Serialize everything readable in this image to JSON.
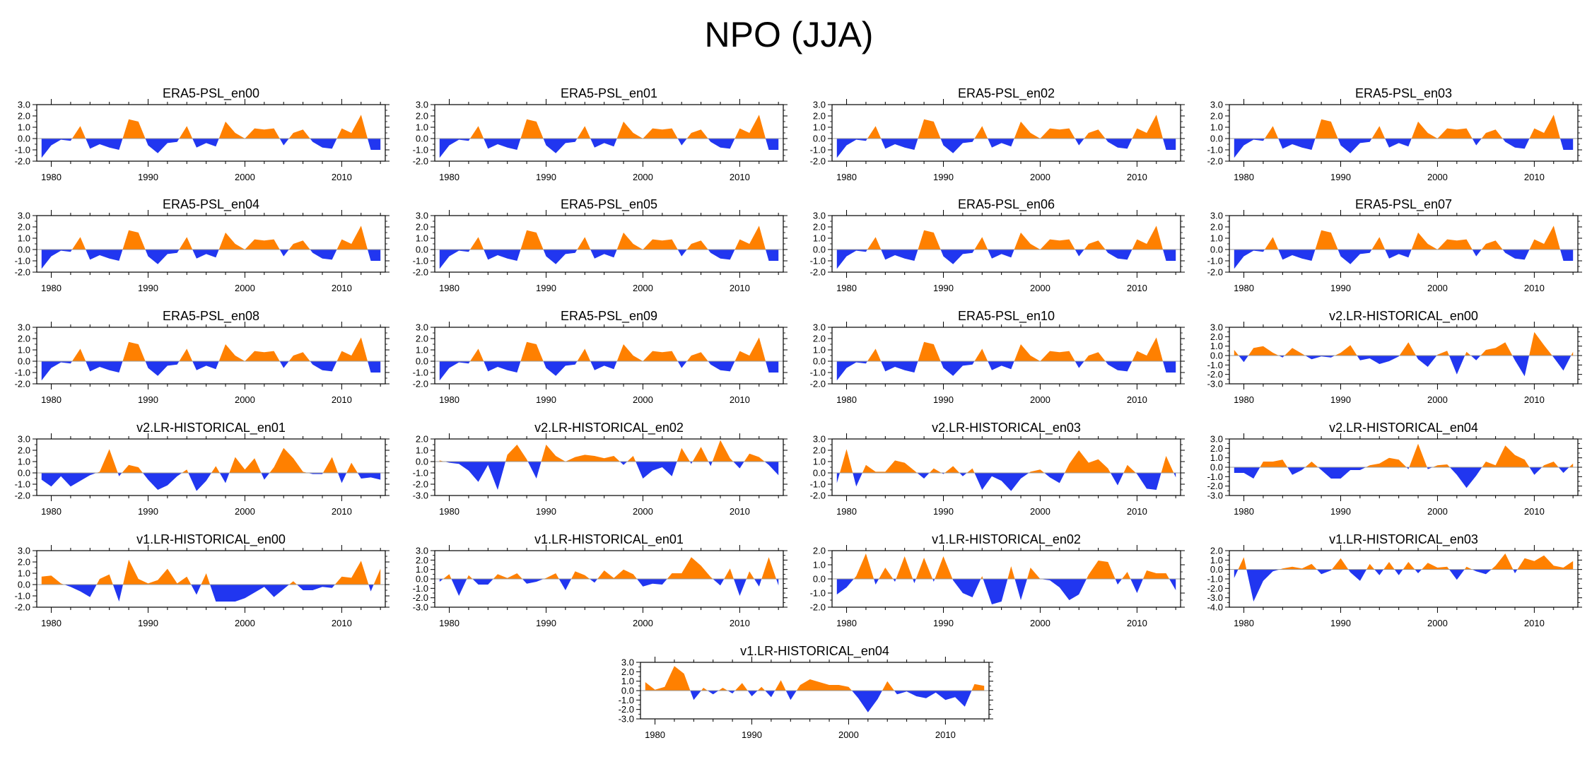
{
  "figure": {
    "title": "NPO (JJA)"
  },
  "colors": {
    "positive": "#ff8000",
    "negative": "#2136f0",
    "axis": "#000000",
    "zero": "#999999"
  },
  "chart_data": [
    {
      "type": "area",
      "title": "ERA5-PSL_en00",
      "ylim": [
        -2,
        3
      ],
      "yticks": [
        "3.0",
        "2.0",
        "1.0",
        "0.0",
        "-1.0",
        "-2.0"
      ],
      "xticks": [
        "1980",
        "1990",
        "2000",
        "2010"
      ],
      "x_start": 1979,
      "x_end": 2014,
      "values": [
        -1.7,
        -0.6,
        -0.1,
        -0.2,
        1.1,
        -0.9,
        -0.5,
        -0.8,
        -1.0,
        1.7,
        1.5,
        -0.6,
        -1.3,
        -0.4,
        -0.3,
        1.1,
        -0.8,
        -0.4,
        -0.7,
        1.5,
        0.5,
        0.0,
        0.9,
        0.8,
        0.9,
        -0.6,
        0.5,
        0.8,
        -0.3,
        -0.8,
        -0.9,
        0.9,
        0.5,
        2.1,
        -1.0,
        -1.0
      ]
    },
    {
      "type": "area",
      "title": "ERA5-PSL_en01",
      "ylim": [
        -2,
        3
      ],
      "yticks": [
        "3.0",
        "2.0",
        "1.0",
        "0.0",
        "-1.0",
        "-2.0"
      ],
      "xticks": [
        "1980",
        "1990",
        "2000",
        "2010"
      ],
      "x_start": 1979,
      "x_end": 2014,
      "values": [
        -1.7,
        -0.6,
        -0.1,
        -0.2,
        1.1,
        -0.9,
        -0.5,
        -0.8,
        -1.0,
        1.7,
        1.5,
        -0.6,
        -1.3,
        -0.4,
        -0.3,
        1.1,
        -0.8,
        -0.4,
        -0.7,
        1.5,
        0.5,
        0.0,
        0.9,
        0.8,
        0.9,
        -0.6,
        0.5,
        0.8,
        -0.3,
        -0.8,
        -0.9,
        0.9,
        0.5,
        2.1,
        -1.0,
        -1.0
      ]
    },
    {
      "type": "area",
      "title": "ERA5-PSL_en02",
      "ylim": [
        -2,
        3
      ],
      "yticks": [
        "3.0",
        "2.0",
        "1.0",
        "0.0",
        "-1.0",
        "-2.0"
      ],
      "xticks": [
        "1980",
        "1990",
        "2000",
        "2010"
      ],
      "x_start": 1979,
      "x_end": 2014,
      "values": [
        -1.7,
        -0.6,
        -0.1,
        -0.2,
        1.1,
        -0.9,
        -0.5,
        -0.8,
        -1.0,
        1.7,
        1.5,
        -0.6,
        -1.3,
        -0.4,
        -0.3,
        1.1,
        -0.8,
        -0.4,
        -0.7,
        1.5,
        0.5,
        0.0,
        0.9,
        0.8,
        0.9,
        -0.6,
        0.5,
        0.8,
        -0.3,
        -0.8,
        -0.9,
        0.9,
        0.5,
        2.1,
        -1.0,
        -1.0
      ]
    },
    {
      "type": "area",
      "title": "ERA5-PSL_en03",
      "ylim": [
        -2,
        3
      ],
      "yticks": [
        "3.0",
        "2.0",
        "1.0",
        "0.0",
        "-1.0",
        "-2.0"
      ],
      "xticks": [
        "1980",
        "1990",
        "2000",
        "2010"
      ],
      "x_start": 1979,
      "x_end": 2014,
      "values": [
        -1.7,
        -0.6,
        -0.1,
        -0.2,
        1.1,
        -0.9,
        -0.5,
        -0.8,
        -1.0,
        1.7,
        1.5,
        -0.6,
        -1.3,
        -0.4,
        -0.3,
        1.1,
        -0.8,
        -0.4,
        -0.7,
        1.5,
        0.5,
        0.0,
        0.9,
        0.8,
        0.9,
        -0.6,
        0.5,
        0.8,
        -0.3,
        -0.8,
        -0.9,
        0.9,
        0.5,
        2.1,
        -1.0,
        -1.0
      ]
    },
    {
      "type": "area",
      "title": "ERA5-PSL_en04",
      "ylim": [
        -2,
        3
      ],
      "yticks": [
        "3.0",
        "2.0",
        "1.0",
        "0.0",
        "-1.0",
        "-2.0"
      ],
      "xticks": [
        "1980",
        "1990",
        "2000",
        "2010"
      ],
      "x_start": 1979,
      "x_end": 2014,
      "values": [
        -1.7,
        -0.6,
        -0.1,
        -0.2,
        1.1,
        -0.9,
        -0.5,
        -0.8,
        -1.0,
        1.7,
        1.5,
        -0.6,
        -1.3,
        -0.4,
        -0.3,
        1.1,
        -0.8,
        -0.4,
        -0.7,
        1.5,
        0.5,
        0.0,
        0.9,
        0.8,
        0.9,
        -0.6,
        0.5,
        0.8,
        -0.3,
        -0.8,
        -0.9,
        0.9,
        0.5,
        2.1,
        -1.0,
        -1.0
      ]
    },
    {
      "type": "area",
      "title": "ERA5-PSL_en05",
      "ylim": [
        -2,
        3
      ],
      "yticks": [
        "3.0",
        "2.0",
        "1.0",
        "0.0",
        "-1.0",
        "-2.0"
      ],
      "xticks": [
        "1980",
        "1990",
        "2000",
        "2010"
      ],
      "x_start": 1979,
      "x_end": 2014,
      "values": [
        -1.7,
        -0.6,
        -0.1,
        -0.2,
        1.1,
        -0.9,
        -0.5,
        -0.8,
        -1.0,
        1.7,
        1.5,
        -0.6,
        -1.3,
        -0.4,
        -0.3,
        1.1,
        -0.8,
        -0.4,
        -0.7,
        1.5,
        0.5,
        0.0,
        0.9,
        0.8,
        0.9,
        -0.6,
        0.5,
        0.8,
        -0.3,
        -0.8,
        -0.9,
        0.9,
        0.5,
        2.1,
        -1.0,
        -1.0
      ]
    },
    {
      "type": "area",
      "title": "ERA5-PSL_en06",
      "ylim": [
        -2,
        3
      ],
      "yticks": [
        "3.0",
        "2.0",
        "1.0",
        "0.0",
        "-1.0",
        "-2.0"
      ],
      "xticks": [
        "1980",
        "1990",
        "2000",
        "2010"
      ],
      "x_start": 1979,
      "x_end": 2014,
      "values": [
        -1.7,
        -0.6,
        -0.1,
        -0.2,
        1.1,
        -0.9,
        -0.5,
        -0.8,
        -1.0,
        1.7,
        1.5,
        -0.6,
        -1.3,
        -0.4,
        -0.3,
        1.1,
        -0.8,
        -0.4,
        -0.7,
        1.5,
        0.5,
        0.0,
        0.9,
        0.8,
        0.9,
        -0.6,
        0.5,
        0.8,
        -0.3,
        -0.8,
        -0.9,
        0.9,
        0.5,
        2.1,
        -1.0,
        -1.0
      ]
    },
    {
      "type": "area",
      "title": "ERA5-PSL_en07",
      "ylim": [
        -2,
        3
      ],
      "yticks": [
        "3.0",
        "2.0",
        "1.0",
        "0.0",
        "-1.0",
        "-2.0"
      ],
      "xticks": [
        "1980",
        "1990",
        "2000",
        "2010"
      ],
      "x_start": 1979,
      "x_end": 2014,
      "values": [
        -1.7,
        -0.6,
        -0.1,
        -0.2,
        1.1,
        -0.9,
        -0.5,
        -0.8,
        -1.0,
        1.7,
        1.5,
        -0.6,
        -1.3,
        -0.4,
        -0.3,
        1.1,
        -0.8,
        -0.4,
        -0.7,
        1.5,
        0.5,
        0.0,
        0.9,
        0.8,
        0.9,
        -0.6,
        0.5,
        0.8,
        -0.3,
        -0.8,
        -0.9,
        0.9,
        0.5,
        2.1,
        -1.0,
        -1.0
      ]
    },
    {
      "type": "area",
      "title": "ERA5-PSL_en08",
      "ylim": [
        -2,
        3
      ],
      "yticks": [
        "3.0",
        "2.0",
        "1.0",
        "0.0",
        "-1.0",
        "-2.0"
      ],
      "xticks": [
        "1980",
        "1990",
        "2000",
        "2010"
      ],
      "x_start": 1979,
      "x_end": 2014,
      "values": [
        -1.7,
        -0.6,
        -0.1,
        -0.2,
        1.1,
        -0.9,
        -0.5,
        -0.8,
        -1.0,
        1.7,
        1.5,
        -0.6,
        -1.3,
        -0.4,
        -0.3,
        1.1,
        -0.8,
        -0.4,
        -0.7,
        1.5,
        0.5,
        0.0,
        0.9,
        0.8,
        0.9,
        -0.6,
        0.5,
        0.8,
        -0.3,
        -0.8,
        -0.9,
        0.9,
        0.5,
        2.1,
        -1.0,
        -1.0
      ]
    },
    {
      "type": "area",
      "title": "ERA5-PSL_en09",
      "ylim": [
        -2,
        3
      ],
      "yticks": [
        "3.0",
        "2.0",
        "1.0",
        "0.0",
        "-1.0",
        "-2.0"
      ],
      "xticks": [
        "1980",
        "1990",
        "2000",
        "2010"
      ],
      "x_start": 1979,
      "x_end": 2014,
      "values": [
        -1.7,
        -0.6,
        -0.1,
        -0.2,
        1.1,
        -0.9,
        -0.5,
        -0.8,
        -1.0,
        1.7,
        1.5,
        -0.6,
        -1.3,
        -0.4,
        -0.3,
        1.1,
        -0.8,
        -0.4,
        -0.7,
        1.5,
        0.5,
        0.0,
        0.9,
        0.8,
        0.9,
        -0.6,
        0.5,
        0.8,
        -0.3,
        -0.8,
        -0.9,
        0.9,
        0.5,
        2.1,
        -1.0,
        -1.0
      ]
    },
    {
      "type": "area",
      "title": "ERA5-PSL_en10",
      "ylim": [
        -2,
        3
      ],
      "yticks": [
        "3.0",
        "2.0",
        "1.0",
        "0.0",
        "-1.0",
        "-2.0"
      ],
      "xticks": [
        "1980",
        "1990",
        "2000",
        "2010"
      ],
      "x_start": 1979,
      "x_end": 2014,
      "values": [
        -1.7,
        -0.6,
        -0.1,
        -0.2,
        1.1,
        -0.9,
        -0.5,
        -0.8,
        -1.0,
        1.7,
        1.5,
        -0.6,
        -1.3,
        -0.4,
        -0.3,
        1.1,
        -0.8,
        -0.4,
        -0.7,
        1.5,
        0.5,
        0.0,
        0.9,
        0.8,
        0.9,
        -0.6,
        0.5,
        0.8,
        -0.3,
        -0.8,
        -0.9,
        0.9,
        0.5,
        2.1,
        -1.0,
        -1.0
      ]
    },
    {
      "type": "area",
      "title": "v2.LR-HISTORICAL_en00",
      "ylim": [
        -3,
        3
      ],
      "yticks": [
        "3.0",
        "2.0",
        "1.0",
        "0.0",
        "-1.0",
        "-2.0",
        "-3.0"
      ],
      "xticks": [
        "1980",
        "1990",
        "2000",
        "2010"
      ],
      "x_start": 1979,
      "x_end": 2014,
      "values": [
        0.6,
        -0.7,
        0.8,
        1.0,
        0.3,
        -0.2,
        0.8,
        0.2,
        -0.4,
        -0.1,
        -0.2,
        0.3,
        1.1,
        -0.5,
        -0.3,
        -0.9,
        -0.6,
        -0.1,
        1.4,
        -0.4,
        -1.2,
        0.1,
        0.5,
        -2.0,
        0.4,
        -0.5,
        0.6,
        0.8,
        1.4,
        -0.5,
        -2.2,
        2.5,
        1.1,
        -0.2,
        -1.6,
        0.4
      ]
    },
    {
      "type": "area",
      "title": "v2.LR-HISTORICAL_en01",
      "ylim": [
        -2,
        3
      ],
      "yticks": [
        "3.0",
        "2.0",
        "1.0",
        "0.0",
        "-1.0",
        "-2.0"
      ],
      "xticks": [
        "1980",
        "1990",
        "2000",
        "2010"
      ],
      "x_start": 1979,
      "x_end": 2014,
      "values": [
        -0.6,
        -1.2,
        -0.3,
        -1.2,
        -0.7,
        -0.2,
        0.1,
        2.1,
        -0.3,
        0.7,
        0.5,
        -0.6,
        -1.5,
        -1.1,
        -0.3,
        0.3,
        -1.6,
        -0.7,
        0.6,
        -0.9,
        1.4,
        0.3,
        1.3,
        -0.6,
        0.5,
        2.2,
        1.3,
        0.1,
        -0.1,
        -0.1,
        1.4,
        -0.9,
        0.9,
        -0.5,
        -0.4,
        -0.6
      ]
    },
    {
      "type": "area",
      "title": "v2.LR-HISTORICAL_en02",
      "ylim": [
        -3,
        2
      ],
      "yticks": [
        "2.0",
        "1.0",
        "0.0",
        "-1.0",
        "-2.0",
        "-3.0"
      ],
      "xticks": [
        "1980",
        "1990",
        "2000",
        "2010"
      ],
      "x_start": 1979,
      "x_end": 2014,
      "values": [
        0.1,
        -0.1,
        -0.2,
        -0.8,
        -1.8,
        -0.3,
        -2.5,
        0.6,
        1.5,
        0.2,
        -1.5,
        1.5,
        0.5,
        0.0,
        0.4,
        0.6,
        0.5,
        0.3,
        0.5,
        -0.3,
        0.5,
        -1.5,
        -0.8,
        -0.5,
        -1.3,
        1.2,
        -0.2,
        1.3,
        -0.4,
        1.9,
        0.3,
        -0.6,
        0.7,
        0.4,
        -0.3,
        -1.2
      ]
    },
    {
      "type": "area",
      "title": "v2.LR-HISTORICAL_en03",
      "ylim": [
        -2,
        3
      ],
      "yticks": [
        "3.0",
        "2.0",
        "1.0",
        "0.0",
        "-1.0",
        "-2.0"
      ],
      "xticks": [
        "1980",
        "1990",
        "2000",
        "2010"
      ],
      "x_start": 1979,
      "x_end": 2014,
      "values": [
        -0.9,
        2.1,
        -1.2,
        0.7,
        0.1,
        0.1,
        1.1,
        0.9,
        0.2,
        -0.5,
        0.4,
        -0.1,
        0.6,
        -0.3,
        0.4,
        -1.5,
        -0.3,
        -0.7,
        -1.6,
        -0.5,
        0.1,
        0.3,
        -0.4,
        -0.9,
        0.8,
        2.0,
        0.9,
        1.2,
        0.4,
        -1.1,
        0.7,
        -0.1,
        -1.4,
        -1.5,
        1.5,
        -0.4
      ]
    },
    {
      "type": "area",
      "title": "v2.LR-HISTORICAL_en04",
      "ylim": [
        -3,
        3
      ],
      "yticks": [
        "3.0",
        "2.0",
        "1.0",
        "0.0",
        "-1.0",
        "-2.0",
        "-3.0"
      ],
      "xticks": [
        "1980",
        "1990",
        "2000",
        "2010"
      ],
      "x_start": 1979,
      "x_end": 2014,
      "values": [
        -0.6,
        -0.6,
        -1.2,
        0.6,
        0.6,
        0.8,
        -0.8,
        -0.3,
        0.6,
        -0.3,
        -1.2,
        -1.2,
        -0.3,
        -0.3,
        0.2,
        0.4,
        1.0,
        0.8,
        -0.2,
        2.5,
        -0.2,
        0.2,
        0.3,
        -0.8,
        -2.2,
        -0.9,
        0.6,
        0.2,
        2.3,
        1.3,
        0.8,
        -0.8,
        0.2,
        0.6,
        -0.6,
        0.4
      ]
    },
    {
      "type": "area",
      "title": "v1.LR-HISTORICAL_en00",
      "ylim": [
        -2,
        3
      ],
      "yticks": [
        "3.0",
        "2.0",
        "1.0",
        "0.0",
        "-1.0",
        "-2.0"
      ],
      "xticks": [
        "1980",
        "1990",
        "2000",
        "2010"
      ],
      "x_start": 1979,
      "x_end": 2014,
      "values": [
        0.7,
        0.8,
        0.1,
        -0.2,
        -0.6,
        -1.1,
        0.5,
        0.9,
        -1.5,
        2.2,
        0.5,
        0.1,
        0.4,
        1.4,
        0.1,
        0.7,
        -0.9,
        1.0,
        -1.5,
        -1.5,
        -1.5,
        -1.2,
        -0.7,
        -0.2,
        -1.1,
        -0.4,
        0.3,
        -0.5,
        -0.5,
        -0.2,
        -0.3,
        0.7,
        0.6,
        2.1,
        -0.6,
        1.4
      ]
    },
    {
      "type": "area",
      "title": "v1.LR-HISTORICAL_en01",
      "ylim": [
        -3,
        3
      ],
      "yticks": [
        "3.0",
        "2.0",
        "1.0",
        "0.0",
        "-1.0",
        "-2.0",
        "-3.0"
      ],
      "xticks": [
        "1980",
        "1990",
        "2000",
        "2010"
      ],
      "x_start": 1979,
      "x_end": 2014,
      "values": [
        -0.3,
        0.5,
        -1.8,
        0.4,
        -0.6,
        -0.6,
        0.5,
        0.1,
        0.6,
        -0.5,
        -0.3,
        0.1,
        0.6,
        -1.2,
        0.8,
        0.4,
        -0.4,
        0.9,
        0.1,
        1.0,
        0.5,
        -0.8,
        -0.5,
        -0.6,
        0.6,
        0.6,
        2.3,
        1.4,
        0.2,
        -0.7,
        1.1,
        -1.8,
        0.8,
        -0.8,
        2.3,
        -0.7
      ]
    },
    {
      "type": "area",
      "title": "v1.LR-HISTORICAL_en02",
      "ylim": [
        -2,
        2
      ],
      "yticks": [
        "2.0",
        "1.0",
        "0.0",
        "-1.0",
        "-2.0"
      ],
      "xticks": [
        "1980",
        "1990",
        "2000",
        "2010"
      ],
      "x_start": 1979,
      "x_end": 2014,
      "values": [
        -1.1,
        -0.6,
        0.2,
        1.8,
        -0.4,
        0.8,
        -0.2,
        1.6,
        -0.3,
        1.5,
        -0.2,
        1.6,
        -0.1,
        -1.0,
        -1.3,
        0.2,
        -1.8,
        -1.6,
        0.9,
        -1.5,
        0.8,
        0.0,
        -0.1,
        -0.6,
        -1.5,
        -1.1,
        0.3,
        1.3,
        1.2,
        -0.4,
        0.5,
        -1.0,
        0.6,
        0.4,
        0.4,
        -0.8
      ]
    },
    {
      "type": "area",
      "title": "v1.LR-HISTORICAL_en03",
      "ylim": [
        -4,
        2
      ],
      "yticks": [
        "2.0",
        "1.0",
        "0.0",
        "-1.0",
        "-2.0",
        "-3.0",
        "-4.0"
      ],
      "xticks": [
        "1980",
        "1990",
        "2000",
        "2010"
      ],
      "x_start": 1979,
      "x_end": 2014,
      "values": [
        -0.9,
        1.3,
        -3.4,
        -1.2,
        -0.2,
        0.1,
        0.3,
        0.1,
        0.6,
        -0.5,
        -0.1,
        1.2,
        -0.3,
        -1.2,
        0.6,
        -0.6,
        0.8,
        -0.6,
        0.8,
        -0.4,
        0.7,
        0.2,
        0.3,
        -1.1,
        0.3,
        -0.2,
        -0.5,
        0.4,
        1.7,
        -0.4,
        1.2,
        0.9,
        1.5,
        0.4,
        0.2,
        0.9
      ]
    },
    {
      "type": "area",
      "title": "v1.LR-HISTORICAL_en04",
      "ylim": [
        -3,
        3
      ],
      "yticks": [
        "3.0",
        "2.0",
        "1.0",
        "0.0",
        "-1.0",
        "-2.0",
        "-3.0"
      ],
      "xticks": [
        "1980",
        "1990",
        "2000",
        "2010"
      ],
      "x_start": 1979,
      "x_end": 2014,
      "values": [
        0.9,
        0.1,
        0.4,
        2.6,
        1.8,
        -1.0,
        0.3,
        -0.4,
        0.3,
        -0.3,
        0.8,
        -0.6,
        0.4,
        -0.7,
        1.1,
        -1.0,
        0.6,
        1.2,
        0.9,
        0.6,
        0.6,
        0.4,
        -0.8,
        -2.3,
        -0.9,
        1.0,
        -0.4,
        -0.1,
        -0.6,
        -0.8,
        -0.2,
        -1.0,
        -0.7,
        -1.7,
        0.7,
        0.5
      ]
    }
  ]
}
